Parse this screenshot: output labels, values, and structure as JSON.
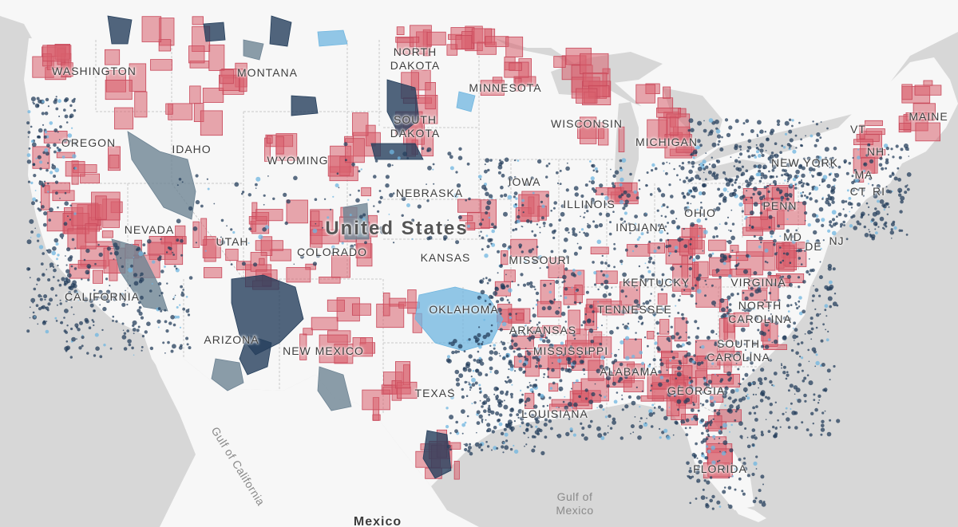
{
  "map": {
    "country_label": "United States",
    "water_labels": {
      "gulf_of_california": "Gulf of California",
      "gulf_of_mexico": "Gulf of\nMexico"
    },
    "neighbor_labels": {
      "mexico": "Mexico"
    },
    "state_labels": {
      "washington": "WASHINGTON",
      "montana": "MONTANA",
      "north_dakota": "NORTH DAKOTA",
      "minnesota": "MINNESOTA",
      "oregon": "OREGON",
      "idaho": "IDAHO",
      "south_dakota": "SOUTH DAKOTA",
      "wisconsin": "WISCONSIN",
      "michigan": "MICHIGAN",
      "wyoming": "WYOMING",
      "new_york": "NEW YORK",
      "maine": "MAINE",
      "vt": "VT",
      "nh": "NH",
      "ma": "MA",
      "ct": "CT",
      "ri": "RI",
      "iowa": "IOWA",
      "nebraska": "NEBRASKA",
      "illinois": "ILLINOIS",
      "ohio": "OHIO",
      "penn": "PENN",
      "nevada": "NEVADA",
      "utah": "UTAH",
      "colorado": "COLORADO",
      "indiana": "INDIANA",
      "md": "MD",
      "de": "DE",
      "nj": "NJ",
      "kansas": "KANSAS",
      "missouri": "MISSOURI",
      "kentucky": "KENTUCKY",
      "virginia": "VIRGINIA",
      "california": "CALIFORNIA",
      "oklahoma": "OKLAHOMA",
      "tennessee": "TENNESSEE",
      "north_carolina": "NORTH CAROLINA",
      "arizona": "ARIZONA",
      "new_mexico": "NEW MEXICO",
      "arkansas": "ARKANSAS",
      "mississippi": "MISSISSIPPI",
      "alabama": "ALABAMA",
      "georgia": "GEORGIA",
      "south_carolina": "SOUTH CAROLINA",
      "texas": "TEXAS",
      "louisiana": "LOUISIANA",
      "florida": "FLORIDA"
    },
    "colors": {
      "water": "#d7d7d7",
      "land": "#f7f7f7",
      "border": "#c9c9c9",
      "red_fill": "#d9606e",
      "red_stroke": "#c8485a",
      "navy_fill": "#253f5c",
      "slate_fill": "#6e8494",
      "lightblue_fill": "#6fb6e0"
    }
  }
}
